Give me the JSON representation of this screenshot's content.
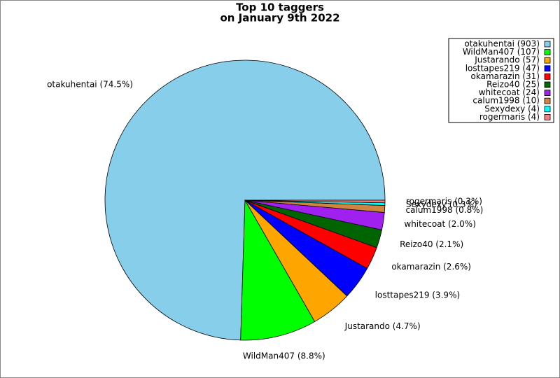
{
  "chart_data": {
    "type": "pie",
    "title": [
      "Top 10 taggers",
      "on January 9th 2022"
    ],
    "values": [
      74.5,
      8.8,
      4.7,
      3.9,
      2.6,
      2.1,
      2.0,
      0.8,
      0.3,
      0.3
    ],
    "value_labels": [
      "otakuhentai (74.5%)",
      "WildMan407 (8.8%)",
      "Justarando (4.7%)",
      "losttapes219 (3.9%)",
      "okamarazin (2.6%)",
      "Reizo40 (2.1%)",
      "whitecoat (2.0%)",
      "calum1998 (0.8%)",
      "Sexydexy (0.3%)",
      "rogermaris (0.3%)"
    ],
    "legend_labels": [
      "otakuhentai (903)",
      "WildMan407 (107)",
      "Justarando (57)",
      "losttapes219 (47)",
      "okamarazin (31)",
      "Reizo40 (25)",
      "whitecoat (24)",
      "calum1998 (10)",
      "Sexydexy (4)",
      "rogermaris (4)"
    ],
    "colors": [
      "#87ceeb",
      "#00ff00",
      "#ffa500",
      "#0000ff",
      "#ff0000",
      "#006400",
      "#a020f0",
      "#cd853f",
      "#00ffff",
      "#f08080"
    ],
    "legend": "upper right"
  }
}
